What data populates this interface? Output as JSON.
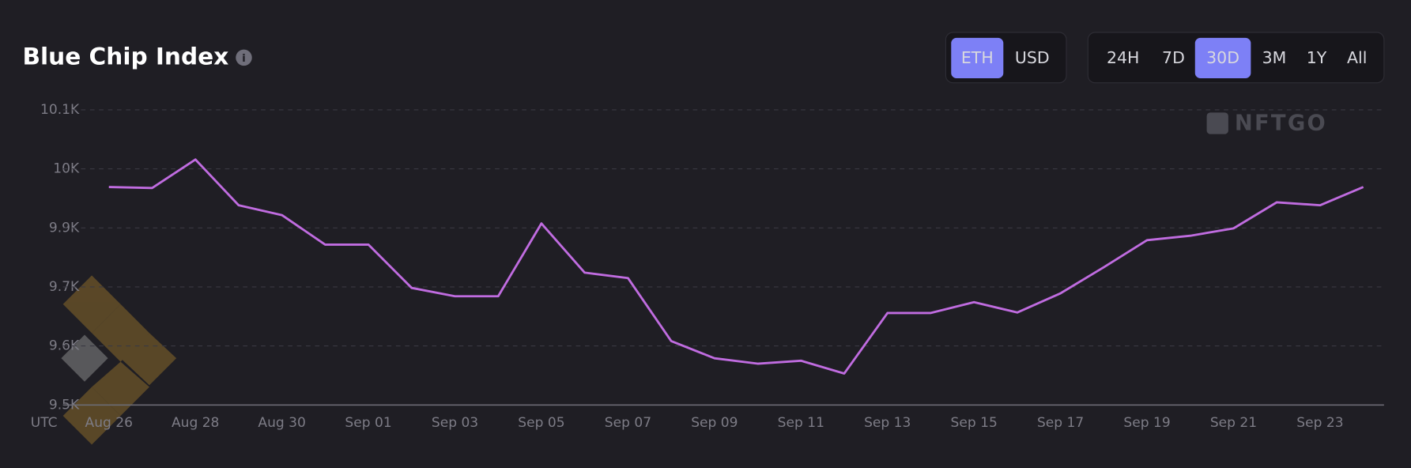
{
  "chart_data": {
    "type": "line",
    "title": "Blue Chip Index",
    "watermark": "NFTGO",
    "x_axis_label": "UTC",
    "categories": [
      "Aug 26",
      null,
      "Aug 28",
      null,
      "Aug 30",
      null,
      "Sep 01",
      null,
      "Sep 03",
      null,
      "Sep 05",
      null,
      "Sep 07",
      null,
      "Sep 09",
      null,
      "Sep 11",
      null,
      "Sep 13",
      null,
      "Sep 15",
      null,
      "Sep 17",
      null,
      "Sep 19",
      null,
      "Sep 21",
      null,
      "Sep 23",
      null
    ],
    "series": [
      {
        "name": "Blue Chip Index",
        "color": "#c06ce0",
        "values": [
          9943,
          9941,
          9999,
          9906,
          9886,
          9826,
          9826,
          9738,
          9721,
          9721,
          9869,
          9769,
          9758,
          9630,
          9595,
          9584,
          9590,
          9564,
          9687,
          9687,
          9709,
          9688,
          9727,
          9780,
          9835,
          9844,
          9859,
          9912,
          9906,
          9943
        ]
      }
    ],
    "ylim": [
      9500,
      10100
    ],
    "yticks": [
      {
        "value": 9500,
        "label": "9.5K"
      },
      {
        "value": 9620,
        "label": "9.6K"
      },
      {
        "value": 9740,
        "label": "9.7K"
      },
      {
        "value": 9860,
        "label": "9.9K"
      },
      {
        "value": 9980,
        "label": "10K"
      },
      {
        "value": 10100,
        "label": "10.1K"
      }
    ],
    "grid": true
  },
  "controls": {
    "units": [
      "ETH",
      "USD"
    ],
    "ranges": [
      "24H",
      "7D",
      "30D",
      "3M",
      "1Y",
      "All"
    ]
  }
}
